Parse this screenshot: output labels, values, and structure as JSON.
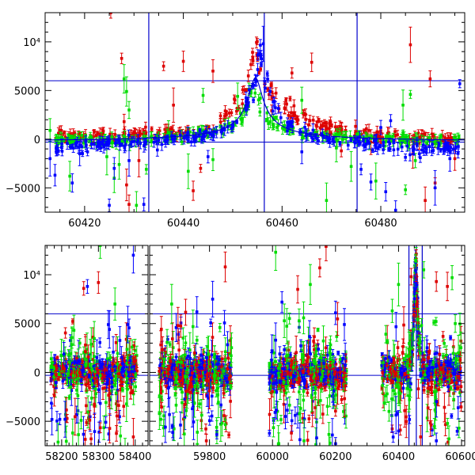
{
  "chart_data": [
    {
      "type": "scatter",
      "panel": "top",
      "title": "",
      "xlabel": "",
      "ylabel": "",
      "xlim": [
        60412,
        60497
      ],
      "ylim": [
        -7500,
        13000
      ],
      "grid": false,
      "legend": "none",
      "x_ticks": [
        {
          "value": 60420,
          "label": "60420"
        },
        {
          "value": 60440,
          "label": "60440"
        },
        {
          "value": 60460,
          "label": "60460"
        },
        {
          "value": 60480,
          "label": "60480"
        }
      ],
      "y_ticks": [
        {
          "value": -5000,
          "label": "−5000"
        },
        {
          "value": 0,
          "label": "0"
        },
        {
          "value": 5000,
          "label": "5000"
        },
        {
          "value": 10000,
          "label": "10⁴"
        }
      ],
      "hlines": [
        6000,
        -300
      ],
      "vlines": [
        60433.0,
        60456.4,
        60475.2
      ],
      "model_curve": {
        "color": "#0000cc",
        "t0": 60454.6,
        "peak": 6300,
        "tE": 2.8,
        "baseline": -300
      },
      "series": [
        {
          "color": "#dd0000",
          "trend_points": [
            [
              60415,
              350
            ],
            [
              60420,
              400
            ],
            [
              60425,
              300
            ],
            [
              60430,
              450
            ],
            [
              60435,
              500
            ],
            [
              60440,
              700
            ],
            [
              60444,
              1100
            ],
            [
              60447,
              1700
            ],
            [
              60450,
              2700
            ],
            [
              60452,
              3900
            ],
            [
              60453.5,
              6500
            ],
            [
              60454.5,
              11000
            ],
            [
              60455.3,
              8000
            ],
            [
              60456.5,
              5500
            ],
            [
              60458,
              4300
            ],
            [
              60460,
              3500
            ],
            [
              60463,
              2600
            ],
            [
              60466,
              1800
            ],
            [
              60470,
              1200
            ],
            [
              60475,
              650
            ],
            [
              60480,
              400
            ],
            [
              60485,
              200
            ],
            [
              60490,
              150
            ],
            [
              60496,
              100
            ]
          ],
          "outliers": [
            [
              60425.3,
              13000
            ],
            [
              60427.5,
              8300
            ],
            [
              60428.0,
              1800
            ],
            [
              60428.5,
              -4700
            ],
            [
              60429.0,
              -6700
            ],
            [
              60431.0,
              -2200
            ],
            [
              60436.0,
              7500
            ],
            [
              60438.0,
              3500
            ],
            [
              60440.0,
              8000
            ],
            [
              60442.0,
              -5300
            ],
            [
              60443.5,
              -3000
            ],
            [
              60446.0,
              7000
            ],
            [
              60462.0,
              6800
            ],
            [
              60466.0,
              7900
            ],
            [
              60467.0,
              700
            ],
            [
              60472.0,
              -1200
            ],
            [
              60478.0,
              -300
            ],
            [
              60486.0,
              9700
            ],
            [
              60486.5,
              -1500
            ],
            [
              60490.0,
              6200
            ],
            [
              60489.0,
              -6300
            ],
            [
              60491.0,
              -4500
            ],
            [
              60495.0,
              -2000
            ]
          ]
        },
        {
          "color": "#00dd00",
          "trend_points": [
            [
              60415,
              -100
            ],
            [
              60420,
              0
            ],
            [
              60425,
              -200
            ],
            [
              60430,
              0
            ],
            [
              60435,
              100
            ],
            [
              60440,
              300
            ],
            [
              60445,
              600
            ],
            [
              60449,
              1200
            ],
            [
              60452,
              2300
            ],
            [
              60453.5,
              4400
            ],
            [
              60454.5,
              5500
            ],
            [
              60455.5,
              3500
            ],
            [
              60457,
              2000
            ],
            [
              60460,
              1200
            ],
            [
              60465,
              600
            ],
            [
              60470,
              300
            ],
            [
              60475,
              200
            ],
            [
              60480,
              0
            ],
            [
              60485,
              -100
            ],
            [
              60490,
              -100
            ],
            [
              60496,
              0
            ]
          ],
          "outliers": [
            [
              60413.0,
              900
            ],
            [
              60417.0,
              -3800
            ],
            [
              60424.5,
              -1800
            ],
            [
              60426.0,
              -4000
            ],
            [
              60427.0,
              -2600
            ],
            [
              60428.0,
              6200
            ],
            [
              60428.5,
              4900
            ],
            [
              60429.0,
              3000
            ],
            [
              60430.5,
              -6800
            ],
            [
              60432.5,
              -3100
            ],
            [
              60437.0,
              700
            ],
            [
              60441.0,
              -3300
            ],
            [
              60444.0,
              4500
            ],
            [
              60446.0,
              -2100
            ],
            [
              60451.0,
              4400
            ],
            [
              60464.0,
              4000
            ],
            [
              60469.0,
              -6300
            ],
            [
              60471.0,
              -900
            ],
            [
              60474.0,
              -2800
            ],
            [
              60479.0,
              -4300
            ],
            [
              60484.5,
              3500
            ],
            [
              60485.0,
              -5200
            ],
            [
              60486.0,
              4600
            ],
            [
              60487.0,
              -2200
            ]
          ]
        },
        {
          "color": "#0000ff",
          "trend_points": [
            [
              60413,
              -1000
            ],
            [
              60418,
              -800
            ],
            [
              60422,
              -600
            ],
            [
              60426,
              -500
            ],
            [
              60430,
              -500
            ],
            [
              60435,
              -300
            ],
            [
              60440,
              0
            ],
            [
              60444,
              400
            ],
            [
              60448,
              900
            ],
            [
              60451,
              1900
            ],
            [
              60453,
              3600
            ],
            [
              60454.5,
              5500
            ],
            [
              60455.5,
              9500
            ],
            [
              60456.5,
              7200
            ],
            [
              60458,
              3400
            ],
            [
              60460,
              1900
            ],
            [
              60463,
              900
            ],
            [
              60466,
              300
            ],
            [
              60470,
              -100
            ],
            [
              60475,
              -300
            ],
            [
              60480,
              -800
            ],
            [
              60485,
              -1000
            ],
            [
              60490,
              -900
            ],
            [
              60496,
              -800
            ]
          ],
          "outliers": [
            [
              60413.0,
              -2000
            ],
            [
              60414.0,
              -3700
            ],
            [
              60417.5,
              -4500
            ],
            [
              60419.0,
              -1500
            ],
            [
              60425.0,
              -6800
            ],
            [
              60426.0,
              -3000
            ],
            [
              60429.0,
              -2200
            ],
            [
              60432.0,
              -6700
            ],
            [
              60445.0,
              -1800
            ],
            [
              60456.2,
              9800
            ],
            [
              60464.0,
              -1300
            ],
            [
              60476.0,
              -3100
            ],
            [
              60478.0,
              -4400
            ],
            [
              60480.0,
              1200
            ],
            [
              60481.0,
              -5400
            ],
            [
              60482.0,
              1900
            ],
            [
              60483.0,
              -7300
            ],
            [
              60488.0,
              -1900
            ],
            [
              60491.0,
              -5000
            ],
            [
              60494.0,
              -2000
            ],
            [
              60496.0,
              5700
            ]
          ]
        }
      ]
    },
    {
      "type": "scatter",
      "panel": "bottom",
      "title": "",
      "xlabel": "",
      "ylabel": "",
      "ylim": [
        -7500,
        13000
      ],
      "grid": false,
      "legend": "none",
      "broken_x_axis": true,
      "segments": [
        {
          "xlim": [
            58155,
            58435
          ],
          "ticks": [
            {
              "value": 58200,
              "label": "58200"
            },
            {
              "value": 58300,
              "label": "58300"
            },
            {
              "value": 58400,
              "label": "58400"
            }
          ]
        },
        {
          "xlim": [
            59610,
            60610
          ],
          "ticks": [
            {
              "value": 59800,
              "label": "59800"
            },
            {
              "value": 60000,
              "label": "60000"
            },
            {
              "value": 60200,
              "label": "60200"
            },
            {
              "value": 60400,
              "label": "60400"
            },
            {
              "value": 60600,
              "label": "60600"
            }
          ]
        }
      ],
      "y_ticks": [
        {
          "value": -5000,
          "label": "−5000"
        },
        {
          "value": 0,
          "label": "0"
        },
        {
          "value": 5000,
          "label": "5000"
        },
        {
          "value": 10000,
          "label": "10⁴"
        }
      ],
      "hlines": [
        6000,
        -300
      ],
      "vlines": [
        60433.0,
        60456.4,
        60475.2
      ],
      "observing_seasons": [
        {
          "start": 58170,
          "end": 58405,
          "spread": 700
        },
        {
          "start": 59640,
          "end": 59870,
          "spread": 800
        },
        {
          "start": 59990,
          "end": 60235,
          "spread": 800
        },
        {
          "start": 60345,
          "end": 60600,
          "spread": 800
        }
      ],
      "event": {
        "t0": 60454.6,
        "peak": 11000,
        "width": 6
      },
      "series_colors": [
        "#dd0000",
        "#00dd00",
        "#0000ff"
      ],
      "outliers": [
        {
          "x": 58260,
          "y": 8600,
          "c": 0
        },
        {
          "x": 58300,
          "y": 9200,
          "c": 0
        },
        {
          "x": 58270,
          "y": 8800,
          "c": 2
        },
        {
          "x": 58395,
          "y": 12000,
          "c": 2
        },
        {
          "x": 58305,
          "y": 13000,
          "c": 1
        },
        {
          "x": 58345,
          "y": 7000,
          "c": 1
        },
        {
          "x": 58330,
          "y": 4400,
          "c": 2
        },
        {
          "x": 58380,
          "y": 4900,
          "c": 2
        },
        {
          "x": 58195,
          "y": -4800,
          "c": 2
        },
        {
          "x": 58230,
          "y": -6200,
          "c": 1
        },
        {
          "x": 58280,
          "y": -6800,
          "c": 0
        },
        {
          "x": 58360,
          "y": -6500,
          "c": 1
        },
        {
          "x": 58395,
          "y": -6600,
          "c": 0
        },
        {
          "x": 58320,
          "y": -5100,
          "c": 2
        },
        {
          "x": 59680,
          "y": 7000,
          "c": 1
        },
        {
          "x": 59700,
          "y": 4800,
          "c": 0
        },
        {
          "x": 59760,
          "y": 6200,
          "c": 2
        },
        {
          "x": 59810,
          "y": 7500,
          "c": 2
        },
        {
          "x": 59850,
          "y": 10800,
          "c": 0
        },
        {
          "x": 59660,
          "y": -5600,
          "c": 2
        },
        {
          "x": 59720,
          "y": -6300,
          "c": 1
        },
        {
          "x": 59790,
          "y": -7000,
          "c": 0
        },
        {
          "x": 59840,
          "y": -5200,
          "c": 1
        },
        {
          "x": 60010,
          "y": 12300,
          "c": 1
        },
        {
          "x": 60030,
          "y": 7200,
          "c": 2
        },
        {
          "x": 60080,
          "y": 8500,
          "c": 0
        },
        {
          "x": 60120,
          "y": 9000,
          "c": 1
        },
        {
          "x": 60170,
          "y": 12900,
          "c": 0
        },
        {
          "x": 60150,
          "y": 10700,
          "c": 0
        },
        {
          "x": 60200,
          "y": 6100,
          "c": 2
        },
        {
          "x": 60060,
          "y": -6200,
          "c": 0
        },
        {
          "x": 60100,
          "y": -7000,
          "c": 1
        },
        {
          "x": 60140,
          "y": -6700,
          "c": 2
        },
        {
          "x": 60190,
          "y": -6400,
          "c": 2
        },
        {
          "x": 60380,
          "y": 6300,
          "c": 1
        },
        {
          "x": 60400,
          "y": 9000,
          "c": 1
        },
        {
          "x": 60440,
          "y": 9800,
          "c": 0
        },
        {
          "x": 60480,
          "y": 10500,
          "c": 1
        },
        {
          "x": 60520,
          "y": 9300,
          "c": 0
        },
        {
          "x": 60555,
          "y": 8800,
          "c": 0
        },
        {
          "x": 60570,
          "y": 9700,
          "c": 1
        },
        {
          "x": 60580,
          "y": 5000,
          "c": 1
        },
        {
          "x": 60590,
          "y": 2000,
          "c": 1
        },
        {
          "x": 60400,
          "y": -6000,
          "c": 2
        },
        {
          "x": 60470,
          "y": -6600,
          "c": 0
        },
        {
          "x": 60520,
          "y": -7000,
          "c": 2
        },
        {
          "x": 60560,
          "y": -6800,
          "c": 1
        }
      ]
    }
  ]
}
